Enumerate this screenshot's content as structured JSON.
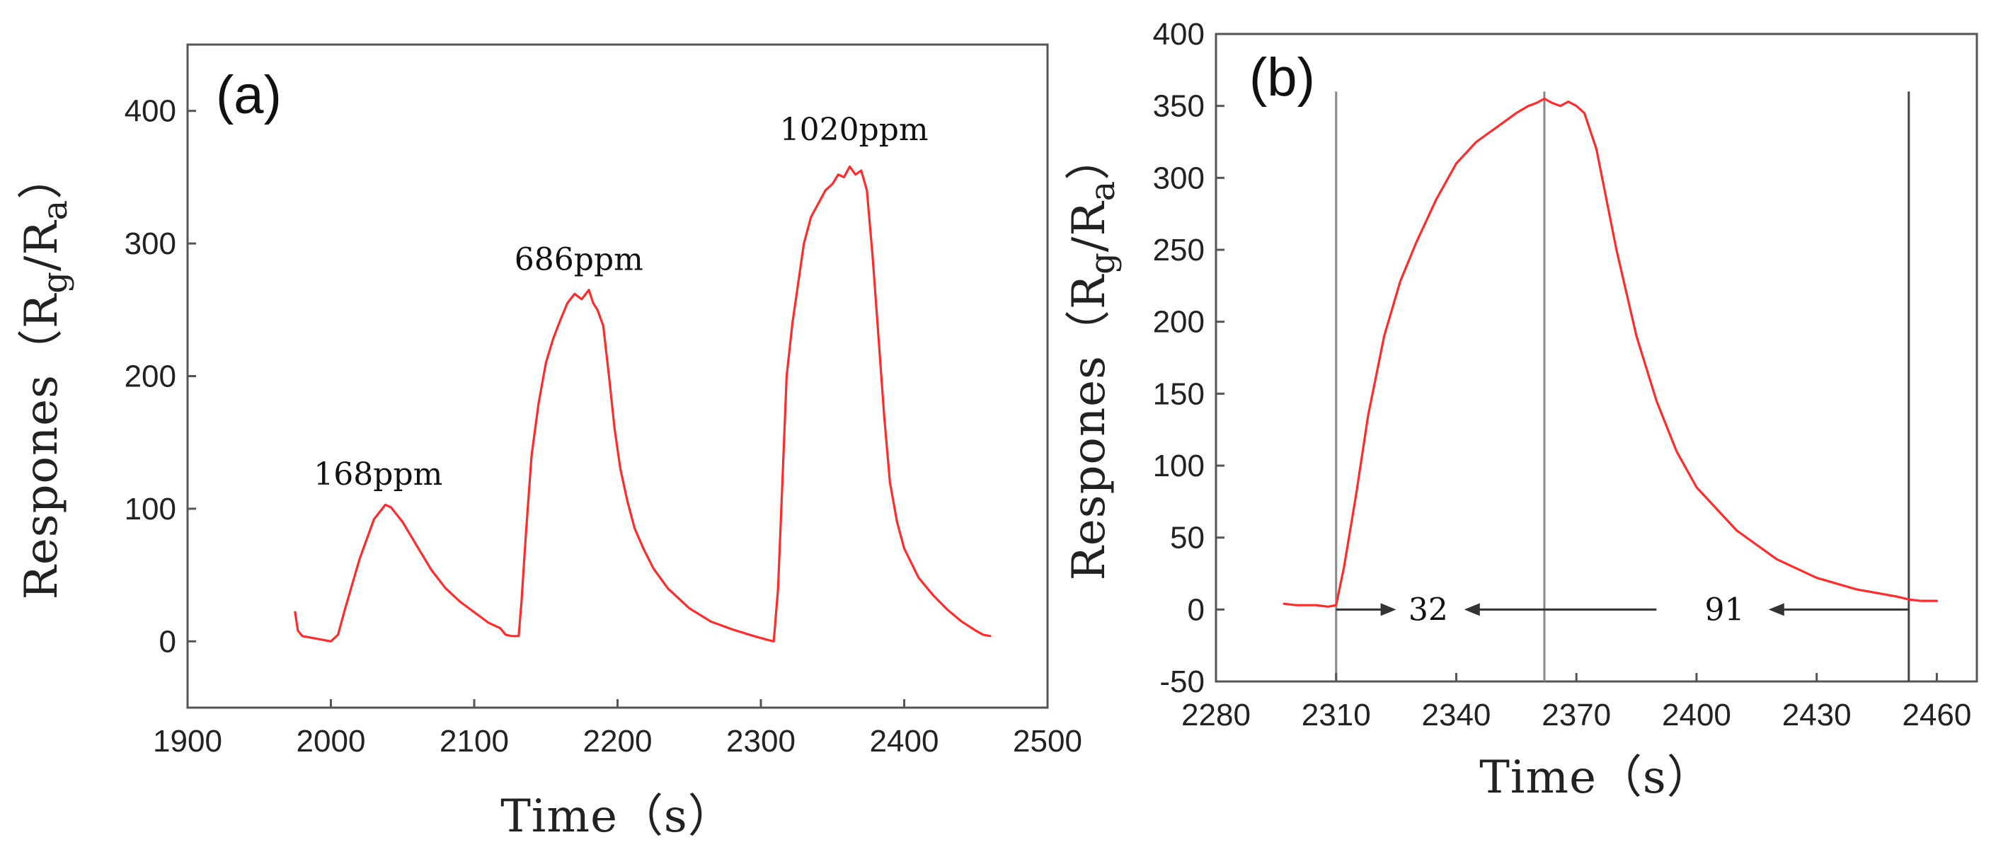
{
  "chart_data": [
    {
      "type": "line",
      "panel_label": "(a)",
      "xlabel": "Time（s）",
      "ylabel": "Respones（Rg/Ra）",
      "ylabel_parts": {
        "prefix": "Respones（R",
        "sub1": "g",
        "mid": "/R",
        "sub2": "a",
        "suffix": "）"
      },
      "xlim": [
        1900,
        2500
      ],
      "ylim": [
        -50,
        450
      ],
      "xticks": [
        1900,
        2000,
        2100,
        2200,
        2300,
        2400,
        2500
      ],
      "yticks": [
        0,
        100,
        200,
        300,
        400
      ],
      "grid": false,
      "annotations": [
        {
          "text": "168ppm",
          "x": 2033,
          "y": 118
        },
        {
          "text": "686ppm",
          "x": 2173,
          "y": 280
        },
        {
          "text": "1020ppm",
          "x": 2365,
          "y": 378
        }
      ],
      "series": [
        {
          "name": "response",
          "color": "#ff2a2a",
          "x": [
            1975,
            1977,
            1980,
            1990,
            2000,
            2005,
            2010,
            2020,
            2030,
            2038,
            2042,
            2050,
            2060,
            2070,
            2080,
            2090,
            2100,
            2110,
            2118,
            2122,
            2126,
            2131,
            2133,
            2136,
            2140,
            2145,
            2150,
            2155,
            2160,
            2165,
            2170,
            2175,
            2180,
            2183,
            2186,
            2190,
            2194,
            2198,
            2202,
            2207,
            2212,
            2218,
            2225,
            2235,
            2250,
            2265,
            2280,
            2295,
            2305,
            2309,
            2312,
            2315,
            2318,
            2322,
            2326,
            2330,
            2335,
            2340,
            2345,
            2350,
            2354,
            2358,
            2362,
            2366,
            2370,
            2374,
            2378,
            2382,
            2386,
            2390,
            2395,
            2400,
            2410,
            2420,
            2430,
            2440,
            2450,
            2455,
            2460
          ],
          "y": [
            22,
            8,
            4,
            2,
            0,
            5,
            25,
            62,
            92,
            103,
            101,
            90,
            72,
            54,
            40,
            30,
            22,
            14,
            10,
            5,
            4,
            4,
            30,
            80,
            140,
            180,
            210,
            228,
            242,
            255,
            262,
            258,
            265,
            255,
            250,
            238,
            200,
            160,
            130,
            105,
            85,
            70,
            55,
            40,
            25,
            15,
            9,
            4,
            1,
            0,
            40,
            120,
            200,
            240,
            270,
            300,
            320,
            330,
            340,
            345,
            352,
            350,
            358,
            352,
            355,
            340,
            290,
            230,
            170,
            120,
            90,
            70,
            48,
            35,
            24,
            15,
            8,
            5,
            4
          ]
        }
      ]
    },
    {
      "type": "line",
      "panel_label": "(b)",
      "xlabel": "Time（s）",
      "ylabel": "Respones（Rg/Ra）",
      "ylabel_parts": {
        "prefix": "Respones（R",
        "sub1": "g",
        "mid": "/R",
        "sub2": "a",
        "suffix": "）"
      },
      "xlim": [
        2280,
        2470
      ],
      "ylim": [
        -50,
        400
      ],
      "xticks": [
        2280,
        2310,
        2340,
        2370,
        2400,
        2430,
        2460
      ],
      "yticks": [
        -50,
        0,
        50,
        100,
        150,
        200,
        250,
        300,
        350,
        400
      ],
      "grid": false,
      "vlines": [
        2310,
        2362,
        2453
      ],
      "annotations": [
        {
          "text": "32",
          "x": 2333,
          "y": 0
        },
        {
          "text": "91",
          "x": 2407,
          "y": 0
        }
      ],
      "arrows": [
        {
          "from": 2310,
          "to": 2325,
          "y": 0
        },
        {
          "from": 2390,
          "to": 2342,
          "y": 0
        },
        {
          "from": 2453,
          "to": 2418,
          "y": 0
        }
      ],
      "series": [
        {
          "name": "response",
          "color": "#ff2a2a",
          "x": [
            2297,
            2300,
            2305,
            2308,
            2310,
            2312,
            2315,
            2318,
            2322,
            2326,
            2330,
            2335,
            2340,
            2345,
            2350,
            2355,
            2358,
            2360,
            2362,
            2364,
            2366,
            2368,
            2370,
            2372,
            2375,
            2380,
            2385,
            2390,
            2395,
            2400,
            2410,
            2420,
            2430,
            2440,
            2450,
            2453,
            2456,
            2460
          ],
          "y": [
            4,
            3,
            3,
            2,
            3,
            30,
            80,
            135,
            190,
            228,
            255,
            285,
            310,
            325,
            335,
            345,
            350,
            352,
            355,
            352,
            350,
            353,
            350,
            345,
            320,
            250,
            190,
            145,
            110,
            85,
            55,
            35,
            22,
            14,
            9,
            7,
            6,
            6
          ]
        }
      ]
    }
  ]
}
